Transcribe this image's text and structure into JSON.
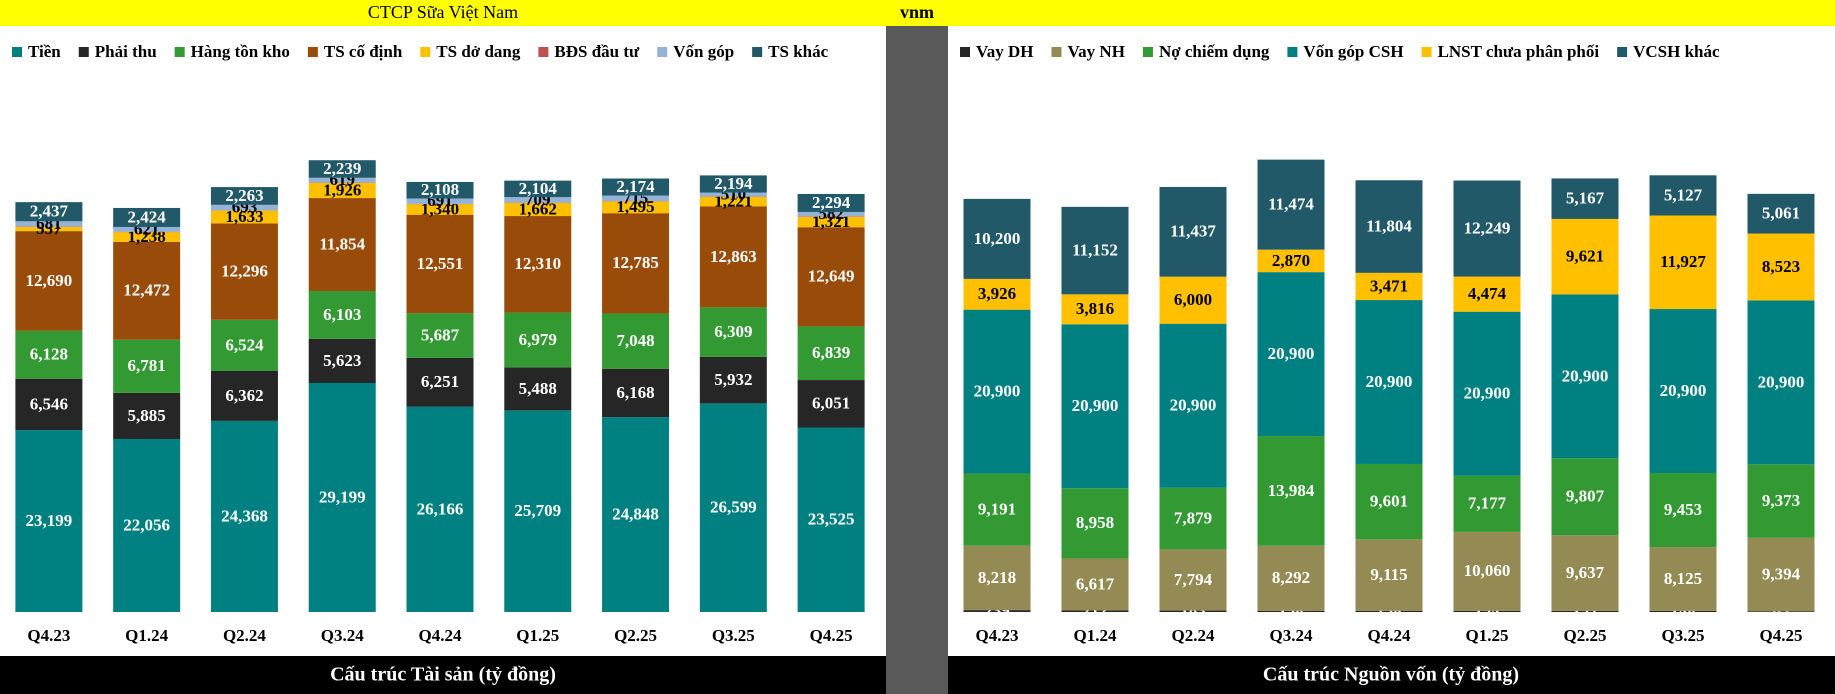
{
  "header": {
    "company": "CTCP Sữa Việt Nam",
    "ticker": "vnm"
  },
  "chart_data": [
    {
      "type": "stacked_bar",
      "title": "Cấu trúc Tài sản (tỷ đồng)",
      "categories": [
        "Q4.23",
        "Q1.24",
        "Q2.24",
        "Q3.24",
        "Q4.24",
        "Q1.25",
        "Q2.25",
        "Q3.25",
        "Q4.25"
      ],
      "ylim": [
        0,
        70000
      ],
      "series": [
        {
          "name": "Tiền",
          "color": "#008080",
          "label_color": "#ffffff",
          "values": [
            23199,
            22056,
            24368,
            29199,
            26166,
            25709,
            24848,
            26599,
            23525
          ],
          "value_labels": [
            "23,199",
            "22,056",
            "24,368",
            "29,199",
            "26,166",
            "25,709",
            "24,848",
            "26,599",
            "23,525"
          ]
        },
        {
          "name": "Phải thu",
          "color": "#262626",
          "label_color": "#ffffff",
          "values": [
            6546,
            5885,
            6362,
            5623,
            6251,
            5488,
            6168,
            5932,
            6051
          ],
          "value_labels": [
            "6,546",
            "5,885",
            "6,362",
            "5,623",
            "6,251",
            "5,488",
            "6,168",
            "5,932",
            "6,051"
          ]
        },
        {
          "name": "Hàng tồn kho",
          "color": "#339933",
          "label_color": "#ffffff",
          "values": [
            6128,
            6781,
            6524,
            6103,
            5687,
            6979,
            7048,
            6309,
            6839
          ],
          "value_labels": [
            "6,128",
            "6,781",
            "6,524",
            "6,103",
            "5,687",
            "6,979",
            "7,048",
            "6,309",
            "6,839"
          ]
        },
        {
          "name": "TS cố định",
          "color": "#994c0a",
          "label_color": "#ffffff",
          "values": [
            12690,
            12472,
            12296,
            11854,
            12551,
            12310,
            12785,
            12863,
            12649
          ],
          "value_labels": [
            "12,690",
            "12,472",
            "12,296",
            "11,854",
            "12,551",
            "12,310",
            "12,785",
            "12,863",
            "12,649"
          ]
        },
        {
          "name": "TS dở dang",
          "color": "#ffc000",
          "label_color": "#000000",
          "values": [
            537,
            1238,
            1633,
            1926,
            1340,
            1662,
            1495,
            1221,
            1321
          ],
          "value_labels": [
            "537",
            "1,238",
            "1,633",
            "1,926",
            "1,340",
            "1,662",
            "1,495",
            "1,221",
            "1,321"
          ]
        },
        {
          "name": "BĐS đầu tư",
          "color": "#c0504d",
          "values": [
            40,
            40,
            40,
            40,
            40,
            40,
            40,
            40,
            40
          ]
        },
        {
          "name": "Vốn góp",
          "color": "#95b3d7",
          "label_color": "#000000",
          "values": [
            681,
            621,
            693,
            619,
            691,
            709,
            715,
            510,
            582
          ],
          "value_labels": [
            "681",
            "621",
            "693",
            "619",
            "691",
            "709",
            "715",
            "510",
            "582"
          ]
        },
        {
          "name": "TS khác",
          "color": "#215968",
          "label_color": "#ffffff",
          "values": [
            2437,
            2424,
            2263,
            2239,
            2108,
            2104,
            2174,
            2194,
            2294
          ],
          "value_labels": [
            "2,437",
            "2,424",
            "2,263",
            "2,239",
            "2,108",
            "2,104",
            "2,174",
            "2,194",
            "2,294"
          ]
        }
      ]
    },
    {
      "type": "stacked_bar",
      "title": "Cấu trúc Nguồn vốn (tỷ đồng)",
      "categories": [
        "Q4.23",
        "Q1.24",
        "Q2.24",
        "Q3.24",
        "Q4.24",
        "Q1.25",
        "Q2.25",
        "Q3.25",
        "Q4.25"
      ],
      "ylim": [
        0,
        70000
      ],
      "series": [
        {
          "name": "Vay DH",
          "color": "#262626",
          "label_color": "#ffffff",
          "values": [
            239,
            212,
            183,
            158,
            158,
            154,
            152,
            148,
            63
          ],
          "value_labels": [
            "239",
            "212",
            "183",
            "158",
            "158",
            "154",
            "152",
            "148",
            "63"
          ]
        },
        {
          "name": "Vay NH",
          "color": "#948a54",
          "label_color": "#ffffff",
          "values": [
            8218,
            6617,
            7794,
            8292,
            9115,
            10060,
            9637,
            8125,
            9394
          ],
          "value_labels": [
            "8,218",
            "6,617",
            "7,794",
            "8,292",
            "9,115",
            "10,060",
            "9,637",
            "8,125",
            "9,394"
          ]
        },
        {
          "name": "Nợ chiếm dụng",
          "color": "#339933",
          "label_color": "#ffffff",
          "values": [
            9191,
            8958,
            7879,
            13984,
            9601,
            7177,
            9807,
            9453,
            9373
          ],
          "value_labels": [
            "9,191",
            "8,958",
            "7,879",
            "13,984",
            "9,601",
            "7,177",
            "9,807",
            "9,453",
            "9,373"
          ]
        },
        {
          "name": "Vốn góp CSH",
          "color": "#008080",
          "label_color": "#ffffff",
          "values": [
            20900,
            20900,
            20900,
            20900,
            20900,
            20900,
            20900,
            20900,
            20900
          ],
          "value_labels": [
            "20,900",
            "20,900",
            "20,900",
            "20,900",
            "20,900",
            "20,900",
            "20,900",
            "20,900",
            "20,900"
          ]
        },
        {
          "name": "LNST chưa phân phối",
          "color": "#ffc000",
          "label_color": "#000000",
          "values": [
            3926,
            3816,
            6000,
            2870,
            3471,
            4474,
            9621,
            11927,
            8523
          ],
          "value_labels": [
            "3,926",
            "3,816",
            "6,000",
            "2,870",
            "3,471",
            "4,474",
            "9,621",
            "11,927",
            "8,523"
          ]
        },
        {
          "name": "VCSH khác",
          "color": "#215968",
          "label_color": "#ffffff",
          "values": [
            10200,
            11152,
            11437,
            11474,
            11804,
            12249,
            5167,
            5127,
            5061
          ],
          "value_labels": [
            "10,200",
            "11,152",
            "11,437",
            "11,474",
            "11,804",
            "12,249",
            "5,167",
            "5,127",
            "5,061"
          ]
        }
      ]
    }
  ]
}
